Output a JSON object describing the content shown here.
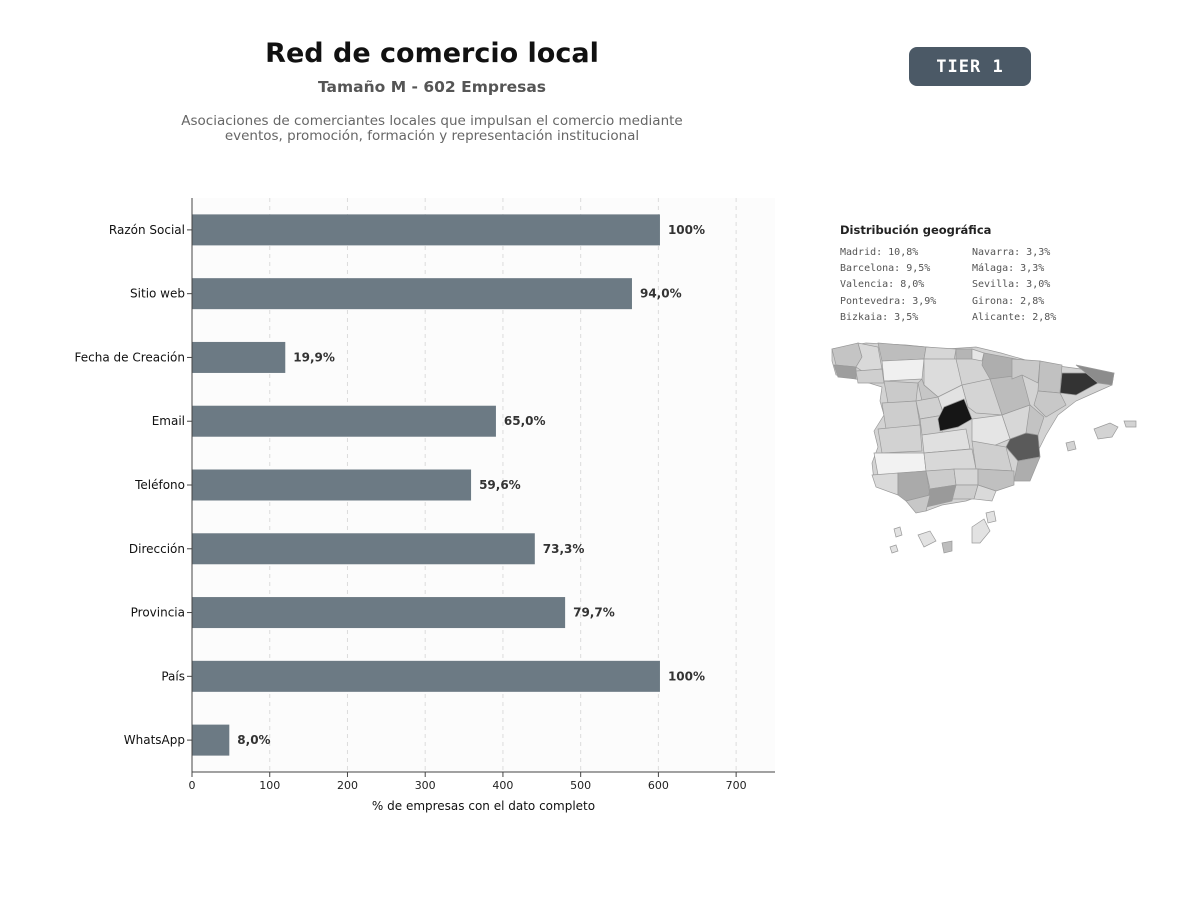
{
  "header": {
    "title": "Red de comercio local",
    "subtitle": "Tamaño M - 602 Empresas",
    "description_line1": "Asociaciones de comerciantes locales que impulsan el comercio mediante",
    "description_line2": "eventos, promoción, formación y representación institucional",
    "tier": "TIER 1"
  },
  "colors": {
    "bar": "#6c7a84",
    "badge": "#4b5966",
    "grid": "#dcdcdc",
    "panel_bg": "#fcfcfc"
  },
  "chart_data": {
    "type": "bar",
    "orientation": "horizontal",
    "categories": [
      "Razón Social",
      "Sitio web",
      "Fecha de Creación",
      "Email",
      "Teléfono",
      "Dirección",
      "Provincia",
      "País",
      "WhatsApp"
    ],
    "values": [
      602,
      566,
      120,
      391,
      359,
      441,
      480,
      602,
      48
    ],
    "data_labels": [
      "100%",
      "94,0%",
      "19,9%",
      "65,0%",
      "59,6%",
      "73,3%",
      "79,7%",
      "100%",
      "8,0%"
    ],
    "xlabel": "% de empresas con el dato completo",
    "ylabel": "",
    "xlim": [
      0,
      750
    ],
    "xticks": [
      0,
      100,
      200,
      300,
      400,
      500,
      600,
      700
    ],
    "grid": "vertical dashed"
  },
  "geo": {
    "title": "Distribución geográfica",
    "left": [
      "Madrid: 10,8%",
      "Barcelona: 9,5%",
      "Valencia: 8,0%",
      "Pontevedra: 3,9%",
      "Bizkaia: 3,5%"
    ],
    "right": [
      "Navarra: 3,3%",
      "Málaga: 3,3%",
      "Sevilla: 3,0%",
      "Girona: 2,8%",
      "Alicante: 2,8%"
    ]
  }
}
